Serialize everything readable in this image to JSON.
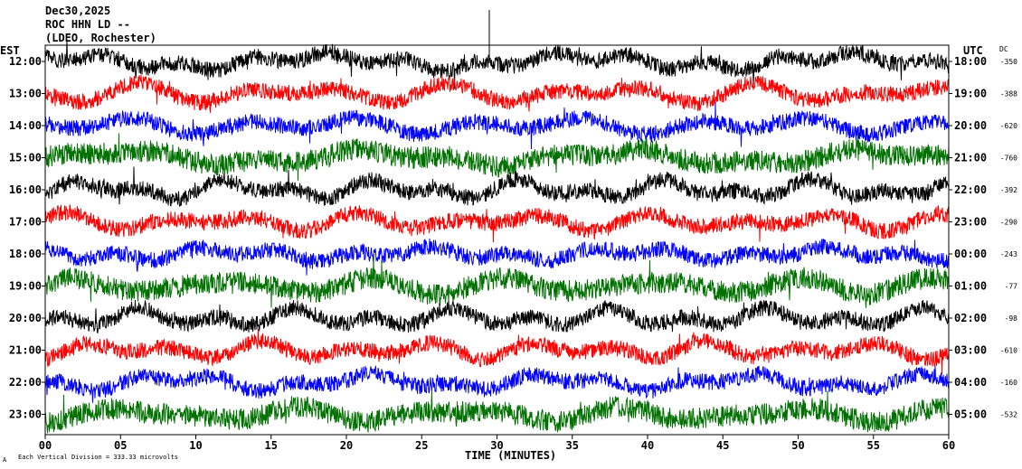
{
  "header": {
    "date": "Dec30,2025",
    "station": "ROC HHN LD --",
    "network": "(LDEO, Rochester)"
  },
  "axes": {
    "left_title": "EST",
    "right_title": "UTC",
    "dc_title": "DC",
    "xlabel": "TIME (MINUTES)",
    "scale_note": "Each Vertical Division =  333.33 microvolts",
    "corner_mark": "A"
  },
  "chart_data": {
    "type": "line",
    "title": "Dec30,2025 ROC HHN LD -- (LDEO, Rochester)",
    "xlabel": "TIME (MINUTES)",
    "xlim": [
      0,
      60
    ],
    "x_ticks": [
      "00",
      "05",
      "10",
      "15",
      "20",
      "25",
      "30",
      "35",
      "40",
      "45",
      "50",
      "55",
      "60"
    ],
    "trace_colors": [
      "#000000",
      "#ff0000",
      "#0000ff",
      "#007000"
    ],
    "rows": [
      {
        "est": "12:00",
        "utc": "18:00",
        "dc": "-350"
      },
      {
        "est": "13:00",
        "utc": "19:00",
        "dc": "-388"
      },
      {
        "est": "14:00",
        "utc": "20:00",
        "dc": "-620"
      },
      {
        "est": "15:00",
        "utc": "21:00",
        "dc": "-760"
      },
      {
        "est": "16:00",
        "utc": "22:00",
        "dc": "-392"
      },
      {
        "est": "17:00",
        "utc": "23:00",
        "dc": "-290"
      },
      {
        "est": "18:00",
        "utc": "00:00",
        "dc": "-243"
      },
      {
        "est": "19:00",
        "utc": "01:00",
        "dc": "-77"
      },
      {
        "est": "20:00",
        "utc": "02:00",
        "dc": "-98"
      },
      {
        "est": "21:00",
        "utc": "03:00",
        "dc": "-610"
      },
      {
        "est": "22:00",
        "utc": "04:00",
        "dc": "-160"
      },
      {
        "est": "23:00",
        "utc": "05:00",
        "dc": "-532"
      }
    ],
    "grid": false
  }
}
